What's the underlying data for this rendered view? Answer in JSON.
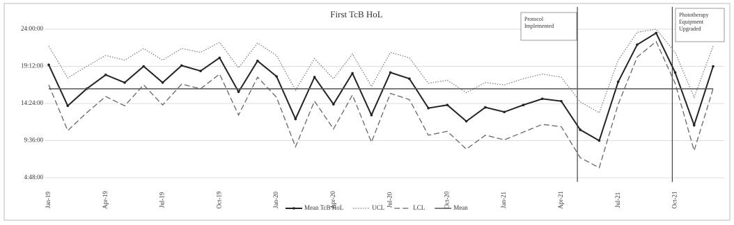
{
  "chart_data": {
    "type": "line",
    "title": "First TcB HoL",
    "categories": [
      "Jan-19",
      null,
      null,
      "Apr-19",
      null,
      null,
      "Jul-19",
      null,
      null,
      "Oct-19",
      null,
      null,
      "Jan-20",
      null,
      null,
      "Apr-20",
      null,
      null,
      "Jul-20",
      null,
      null,
      "Oct-20",
      null,
      null,
      "Jan-21",
      null,
      null,
      "Apr-21",
      null,
      null,
      "Jul-21",
      null,
      null,
      "Oct-21",
      null,
      null
    ],
    "ylim": [
      4.8,
      24
    ],
    "yticks": [
      {
        "value": 4.8,
        "label": "4:48:00"
      },
      {
        "value": 9.6,
        "label": "9:36:00"
      },
      {
        "value": 14.4,
        "label": "14:24:00"
      },
      {
        "value": 19.2,
        "label": "19:12:00"
      },
      {
        "value": 24,
        "label": "24:00:00"
      }
    ],
    "grid": true,
    "legend": "bottom",
    "series": [
      {
        "name": "Mean TcB HoL",
        "color": "#222222",
        "style": "solid-markers",
        "values": [
          19.4,
          14.1,
          16.3,
          18.1,
          17.1,
          19.2,
          17.1,
          19.3,
          18.6,
          20.3,
          15.9,
          19.9,
          17.9,
          12.4,
          17.8,
          14.3,
          18.3,
          12.9,
          18.4,
          17.6,
          13.8,
          14.2,
          12.1,
          13.9,
          13.3,
          14.2,
          15.0,
          14.7,
          11.0,
          9.6,
          17.2,
          22.0,
          23.5,
          18.4,
          11.6,
          19.2
        ]
      },
      {
        "name": "UCL",
        "color": "#777777",
        "style": "dotted",
        "values": [
          21.8,
          17.7,
          19.2,
          20.6,
          20.0,
          21.5,
          20.0,
          21.5,
          21.0,
          22.3,
          19.0,
          22.2,
          20.6,
          16.1,
          20.2,
          17.6,
          20.8,
          16.6,
          21.0,
          20.3,
          17.0,
          17.4,
          15.8,
          17.1,
          16.8,
          17.6,
          18.2,
          17.8,
          14.6,
          13.2,
          20.0,
          23.6,
          24.0,
          21.0,
          15.2,
          21.8
        ]
      },
      {
        "name": "LCL",
        "color": "#666666",
        "style": "dashed",
        "values": [
          16.8,
          10.9,
          13.2,
          15.3,
          14.1,
          16.8,
          14.2,
          16.9,
          16.3,
          18.2,
          12.9,
          17.8,
          15.2,
          8.8,
          14.7,
          11.1,
          15.5,
          9.4,
          15.7,
          14.9,
          10.3,
          10.8,
          8.5,
          10.3,
          9.7,
          10.7,
          11.7,
          11.4,
          7.4,
          6.1,
          14.3,
          20.4,
          22.4,
          17.0,
          8.3,
          16.3
        ]
      },
      {
        "name": "Mean",
        "color": "#555555",
        "style": "solid",
        "values": [
          16.3,
          16.3,
          16.3,
          16.3,
          16.3,
          16.3,
          16.3,
          16.3,
          16.3,
          16.3,
          16.3,
          16.3,
          16.3,
          16.3,
          16.3,
          16.3,
          16.3,
          16.3,
          16.3,
          16.3,
          16.3,
          16.3,
          16.3,
          16.3,
          16.3,
          16.3,
          16.3,
          16.3,
          16.3,
          16.3,
          16.3,
          16.3,
          16.3,
          16.3,
          16.3,
          16.3
        ]
      }
    ],
    "annotations": [
      {
        "text": "Protocol Implemented"
      },
      {
        "text": "Phototherapy Equipment Upgraded"
      }
    ]
  }
}
